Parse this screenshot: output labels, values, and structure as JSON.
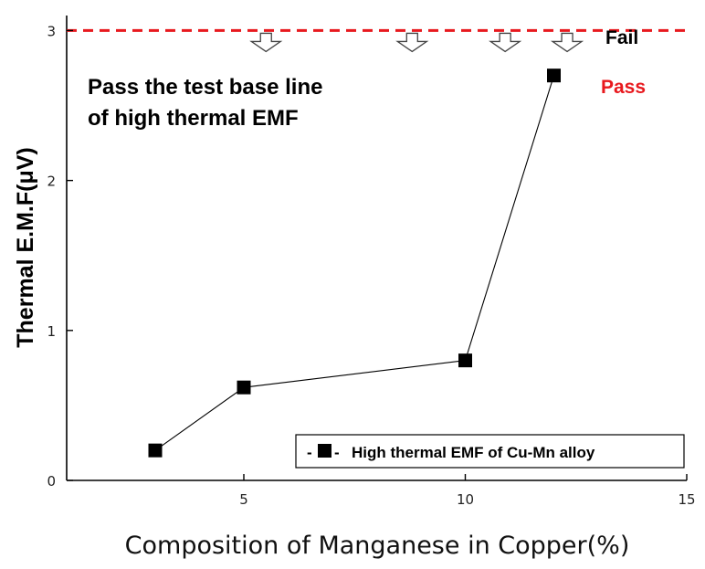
{
  "chart_data": {
    "type": "line",
    "xlabel": "Composition of Manganese in Copper(%)",
    "ylabel": "Thermal E.M.F(μV)",
    "xlim": [
      1,
      15
    ],
    "ylim": [
      0,
      3.1
    ],
    "xticks": [
      5,
      10,
      15
    ],
    "yticks": [
      0,
      1,
      2,
      3
    ],
    "grid": false,
    "legend_position": "bottom-right",
    "series": [
      {
        "name": "High thermal EMF of Cu-Mn alloy",
        "legend_prefix": "-",
        "legend_suffix": "-",
        "marker": "square",
        "color": "#000000",
        "x": [
          3,
          5,
          10,
          12
        ],
        "y": [
          0.2,
          0.62,
          0.8,
          2.7
        ]
      }
    ],
    "reference_line": {
      "y": 3,
      "color": "#e8191e",
      "style": "dashed"
    },
    "reference_arrows_x": [
      5.5,
      8.8,
      10.9,
      12.3
    ],
    "fail_label": "Fail",
    "pass_label": "Pass",
    "pass_color": "#e8191e",
    "annotation_lines": [
      "Pass the test base line",
      "of high thermal EMF"
    ]
  }
}
